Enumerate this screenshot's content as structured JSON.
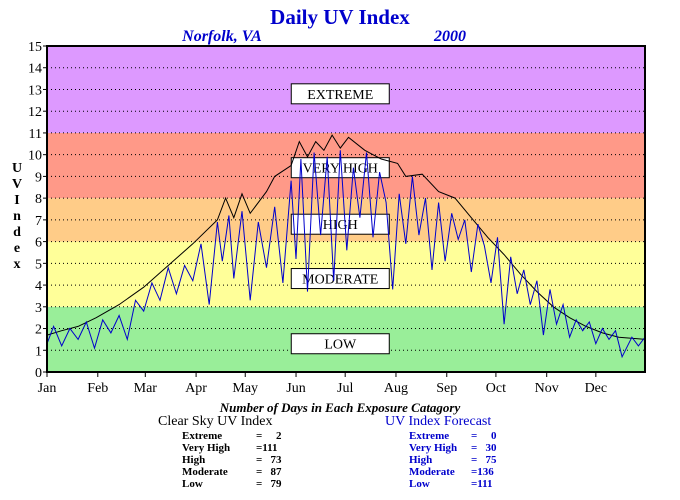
{
  "chart_data": {
    "type": "line",
    "title": "Daily UV Index",
    "location": "Norfolk, VA",
    "year": "2000",
    "ylabel": "U V I n d e x",
    "ylim": [
      0,
      15
    ],
    "xlim": [
      1,
      366
    ],
    "yticks": [
      "0",
      "1",
      "2",
      "3",
      "4",
      "5",
      "6",
      "7",
      "8",
      "9",
      "10",
      "11",
      "12",
      "13",
      "14",
      "15"
    ],
    "months": [
      "Jan",
      "Feb",
      "Mar",
      "Apr",
      "May",
      "Jun",
      "Jul",
      "Aug",
      "Sep",
      "Oct",
      "Nov",
      "Dec"
    ],
    "bands": [
      {
        "label": "LOW",
        "min": 0,
        "max": 3,
        "color": "#99ee99"
      },
      {
        "label": "MODERATE",
        "min": 3,
        "max": 6,
        "color": "#ffff99"
      },
      {
        "label": "HIGH",
        "min": 6,
        "max": 8,
        "color": "#ffcc88"
      },
      {
        "label": "VERY HIGH",
        "min": 8,
        "max": 11,
        "color": "#ff9988"
      },
      {
        "label": "EXTREME",
        "min": 11,
        "max": 15,
        "color": "#dd99ff"
      }
    ],
    "band_label_values": {
      "EXTREME": 12.8,
      "VERY HIGH": 9.4,
      "HIGH": 6.8,
      "MODERATE": 4.3,
      "LOW": 1.3
    },
    "series": [
      {
        "name": "Clear Sky UV Index",
        "color": "#000000",
        "points": [
          [
            1,
            1.7
          ],
          [
            10,
            1.9
          ],
          [
            20,
            2.1
          ],
          [
            31,
            2.5
          ],
          [
            45,
            3.1
          ],
          [
            60,
            3.9
          ],
          [
            75,
            4.9
          ],
          [
            90,
            5.9
          ],
          [
            105,
            7.0
          ],
          [
            110,
            8.0
          ],
          [
            115,
            7.1
          ],
          [
            120,
            8.2
          ],
          [
            125,
            7.3
          ],
          [
            135,
            8.3
          ],
          [
            140,
            9.0
          ],
          [
            150,
            9.5
          ],
          [
            155,
            10.6
          ],
          [
            160,
            9.9
          ],
          [
            165,
            10.6
          ],
          [
            170,
            10.2
          ],
          [
            175,
            10.9
          ],
          [
            180,
            10.3
          ],
          [
            185,
            10.8
          ],
          [
            195,
            10.2
          ],
          [
            200,
            10.0
          ],
          [
            205,
            9.8
          ],
          [
            215,
            9.6
          ],
          [
            220,
            9.0
          ],
          [
            230,
            9.1
          ],
          [
            240,
            8.3
          ],
          [
            250,
            8.0
          ],
          [
            260,
            7.1
          ],
          [
            270,
            6.2
          ],
          [
            280,
            5.4
          ],
          [
            290,
            4.5
          ],
          [
            300,
            3.7
          ],
          [
            310,
            3.0
          ],
          [
            320,
            2.5
          ],
          [
            330,
            2.1
          ],
          [
            340,
            1.8
          ],
          [
            350,
            1.6
          ],
          [
            366,
            1.5
          ]
        ]
      },
      {
        "name": "UV Index Forecast",
        "color": "#0000cc",
        "points": [
          [
            1,
            1.3
          ],
          [
            5,
            2.1
          ],
          [
            10,
            1.2
          ],
          [
            15,
            2.0
          ],
          [
            20,
            1.5
          ],
          [
            25,
            2.3
          ],
          [
            30,
            1.1
          ],
          [
            35,
            2.4
          ],
          [
            40,
            1.8
          ],
          [
            45,
            2.6
          ],
          [
            50,
            1.5
          ],
          [
            55,
            3.3
          ],
          [
            60,
            2.8
          ],
          [
            65,
            4.1
          ],
          [
            70,
            3.3
          ],
          [
            75,
            4.8
          ],
          [
            80,
            3.6
          ],
          [
            85,
            4.9
          ],
          [
            90,
            4.2
          ],
          [
            95,
            5.9
          ],
          [
            100,
            3.1
          ],
          [
            105,
            6.9
          ],
          [
            108,
            5.1
          ],
          [
            112,
            7.2
          ],
          [
            115,
            4.3
          ],
          [
            120,
            7.4
          ],
          [
            125,
            3.3
          ],
          [
            130,
            6.9
          ],
          [
            135,
            4.8
          ],
          [
            140,
            7.6
          ],
          [
            145,
            4.1
          ],
          [
            150,
            8.8
          ],
          [
            153,
            5.2
          ],
          [
            156,
            9.8
          ],
          [
            160,
            3.7
          ],
          [
            164,
            10.1
          ],
          [
            168,
            6.3
          ],
          [
            172,
            9.9
          ],
          [
            176,
            4.2
          ],
          [
            180,
            10.2
          ],
          [
            184,
            5.6
          ],
          [
            188,
            9.4
          ],
          [
            192,
            7.1
          ],
          [
            196,
            10.1
          ],
          [
            200,
            6.2
          ],
          [
            204,
            9.2
          ],
          [
            208,
            7.8
          ],
          [
            212,
            3.8
          ],
          [
            216,
            8.2
          ],
          [
            220,
            5.9
          ],
          [
            224,
            9.0
          ],
          [
            228,
            6.3
          ],
          [
            232,
            8.0
          ],
          [
            236,
            4.7
          ],
          [
            240,
            7.8
          ],
          [
            244,
            5.1
          ],
          [
            248,
            7.3
          ],
          [
            252,
            6.1
          ],
          [
            256,
            7.0
          ],
          [
            260,
            4.6
          ],
          [
            264,
            6.8
          ],
          [
            268,
            5.8
          ],
          [
            272,
            4.1
          ],
          [
            276,
            6.2
          ],
          [
            280,
            2.2
          ],
          [
            284,
            5.3
          ],
          [
            288,
            3.6
          ],
          [
            292,
            4.7
          ],
          [
            296,
            3.1
          ],
          [
            300,
            4.2
          ],
          [
            304,
            1.7
          ],
          [
            308,
            3.8
          ],
          [
            312,
            2.2
          ],
          [
            316,
            3.1
          ],
          [
            320,
            1.6
          ],
          [
            324,
            2.4
          ],
          [
            328,
            1.9
          ],
          [
            332,
            2.3
          ],
          [
            336,
            1.3
          ],
          [
            340,
            2.0
          ],
          [
            344,
            1.5
          ],
          [
            348,
            1.9
          ],
          [
            352,
            0.7
          ],
          [
            358,
            1.6
          ],
          [
            362,
            1.2
          ],
          [
            366,
            1.6
          ]
        ]
      }
    ]
  },
  "stats_title": "Number of Days in Each Exposure Catagory",
  "clear_sky": {
    "title": "Clear Sky UV Index",
    "rows": [
      {
        "label": "Extreme",
        "value": "=     2"
      },
      {
        "label": "Very High",
        "value": "=111"
      },
      {
        "label": "High",
        "value": "=   73"
      },
      {
        "label": "Moderate",
        "value": "=   87"
      },
      {
        "label": "Low",
        "value": "=   79"
      }
    ]
  },
  "forecast": {
    "title": "UV Index Forecast",
    "rows": [
      {
        "label": "Extreme",
        "value": "=     0"
      },
      {
        "label": "Very High",
        "value": "=   30"
      },
      {
        "label": "High",
        "value": "=   75"
      },
      {
        "label": "Moderate",
        "value": "=136"
      },
      {
        "label": "Low",
        "value": "=111"
      }
    ]
  }
}
